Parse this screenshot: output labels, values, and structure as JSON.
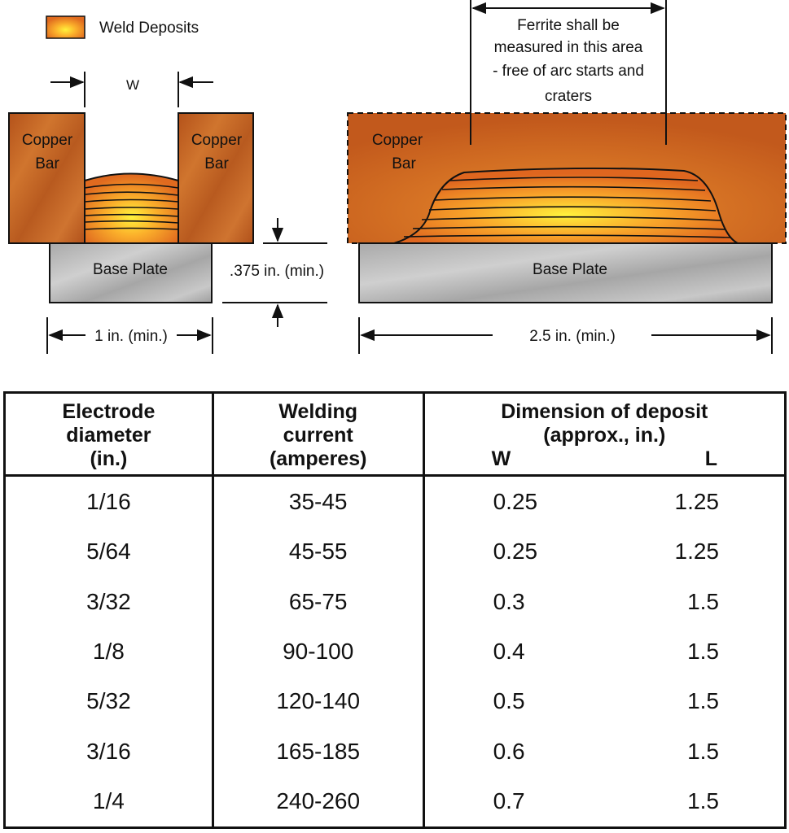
{
  "legend": {
    "label": "Weld Deposits"
  },
  "left_view": {
    "width_label": "W",
    "copper_bar_left": [
      "Copper",
      "Bar"
    ],
    "copper_bar_right": [
      "Copper",
      "Bar"
    ],
    "base_plate": "Base Plate",
    "length_label": "1 in. (min.)",
    "thickness_label": ".375 in. (min.)"
  },
  "right_view": {
    "ferrite_note": [
      "Ferrite shall be",
      "measured in this area",
      "- free of arc starts and",
      "craters"
    ],
    "copper_bar": [
      "Copper",
      "Bar"
    ],
    "base_plate": "Base Plate",
    "length_label": "2.5 in. (min.)"
  },
  "colors": {
    "copper": "#c4621e",
    "weld_center": "#ffe53a",
    "plate": "#b8b8b8",
    "line": "#111111"
  },
  "table": {
    "col1": [
      "Electrode",
      "diameter",
      "(in.)"
    ],
    "col2": [
      "Welding",
      "current",
      "(amperes)"
    ],
    "col3": [
      "Dimension of deposit",
      "(approx., in.)"
    ],
    "col3_w": "W",
    "col3_l": "L",
    "rows": [
      [
        "1/16",
        "35-45",
        "0.25",
        "1.25"
      ],
      [
        "5/64",
        "45-55",
        "0.25",
        "1.25"
      ],
      [
        "3/32",
        "65-75",
        "0.3",
        "1.5"
      ],
      [
        "1/8",
        "90-100",
        "0.4",
        "1.5"
      ],
      [
        "5/32",
        "120-140",
        "0.5",
        "1.5"
      ],
      [
        "3/16",
        "165-185",
        "0.6",
        "1.5"
      ],
      [
        "1/4",
        "240-260",
        "0.7",
        "1.5"
      ]
    ]
  }
}
